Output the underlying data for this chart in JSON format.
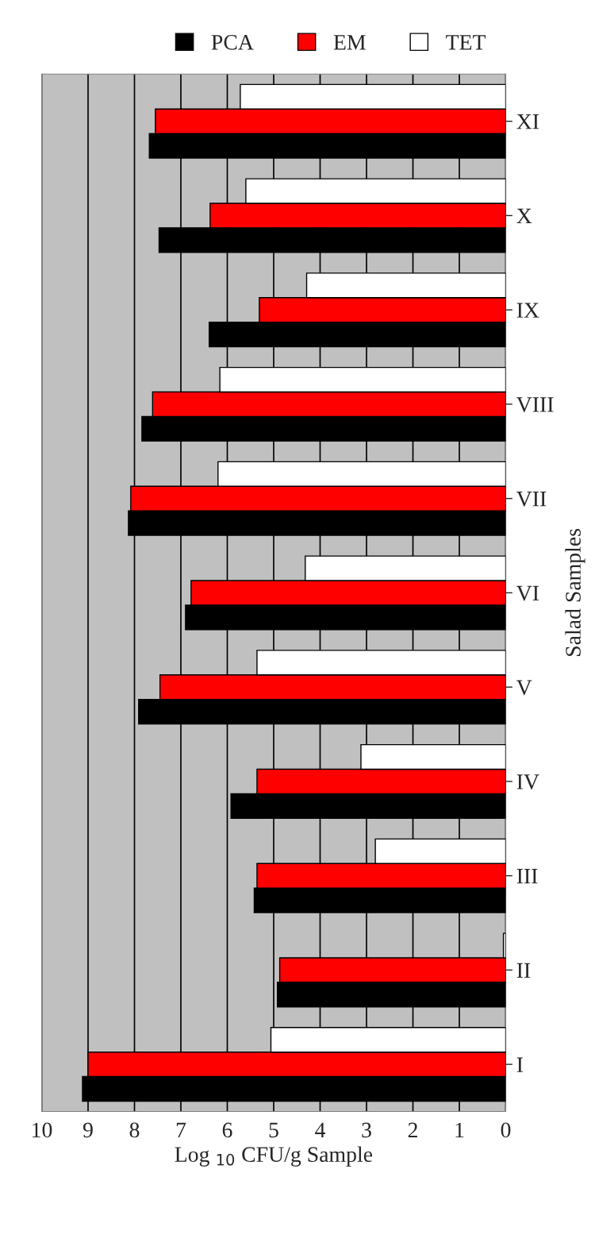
{
  "chart_data": {
    "type": "bar",
    "orientation": "horizontal",
    "xlabel": "Log $_{10}$ CFU/g Sample",
    "ylabel": "Salad Samples",
    "categories": [
      "XI",
      "X",
      "IX",
      "VIII",
      "VII",
      "VI",
      "V",
      "IV",
      "III",
      "II",
      "I"
    ],
    "series": [
      {
        "name": "PCA",
        "color": "#000000",
        "values": [
          7.68,
          7.47,
          6.39,
          7.84,
          8.13,
          6.9,
          7.91,
          5.92,
          5.42,
          4.92,
          9.12
        ]
      },
      {
        "name": "EM",
        "color": "#ff0000",
        "values": [
          7.55,
          6.37,
          5.31,
          7.61,
          8.08,
          6.78,
          7.45,
          5.36,
          5.36,
          4.87,
          9.0
        ]
      },
      {
        "name": "TET",
        "color": "#ffffff",
        "values": [
          5.72,
          5.6,
          4.29,
          6.16,
          6.2,
          4.32,
          5.36,
          3.12,
          2.81,
          0.05,
          5.06
        ]
      }
    ],
    "xlim": [
      10,
      0
    ],
    "xticks": [
      10,
      9,
      8,
      7,
      6,
      5,
      4,
      3,
      2,
      1,
      0
    ],
    "grid": "x",
    "legend": "top right"
  }
}
